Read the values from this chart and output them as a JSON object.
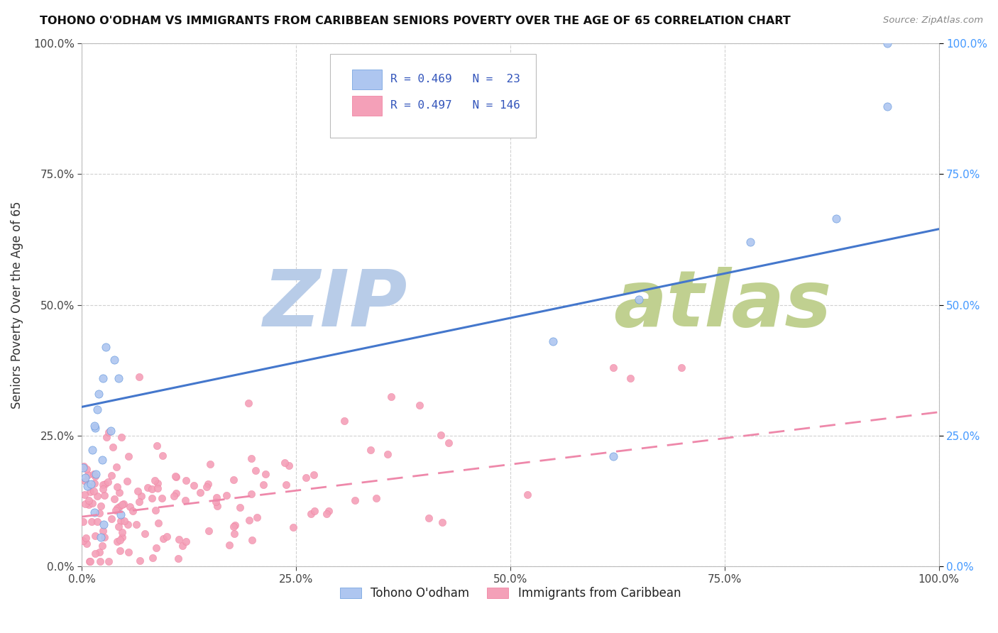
{
  "title": "TOHONO O'ODHAM VS IMMIGRANTS FROM CARIBBEAN SENIORS POVERTY OVER THE AGE OF 65 CORRELATION CHART",
  "source_text": "Source: ZipAtlas.com",
  "ylabel": "Seniors Poverty Over the Age of 65",
  "legend1_label": "Tohono O'odham",
  "legend2_label": "Immigrants from Caribbean",
  "r1": 0.469,
  "n1": 23,
  "r2": 0.497,
  "n2": 146,
  "blue_color": "#aec6f0",
  "blue_edge_color": "#6699dd",
  "pink_color": "#f4a0b8",
  "pink_edge_color": "#ee7799",
  "blue_line_color": "#4477cc",
  "pink_line_color": "#ee88aa",
  "watermark_zip_color": "#b0c8e8",
  "watermark_atlas_color": "#c8d8a0",
  "right_axis_color": "#4499ff",
  "xlim": [
    0,
    1
  ],
  "ylim": [
    0,
    1
  ],
  "blue_line_y0": 0.305,
  "blue_line_y1": 0.645,
  "pink_line_y0": 0.095,
  "pink_line_y1": 0.295
}
